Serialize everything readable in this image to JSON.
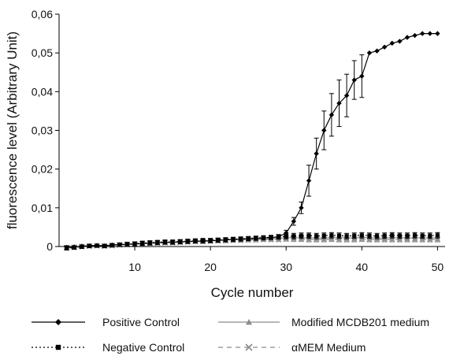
{
  "chart_data": {
    "type": "line",
    "title": "",
    "xlabel": "Cycle number",
    "ylabel": "fluorescence level (Arbitrary Unit)",
    "xlim": [
      0,
      51
    ],
    "ylim": [
      0,
      0.06
    ],
    "x_ticks": [
      10,
      20,
      30,
      40,
      50
    ],
    "x_tick_labels": [
      "10",
      "20",
      "30",
      "40",
      "50"
    ],
    "y_ticks": [
      0,
      0.01,
      0.02,
      0.03,
      0.04,
      0.05,
      0.06
    ],
    "y_tick_labels": [
      "0",
      "0,01",
      "0,02",
      "0,03",
      "0,04",
      "0,05",
      "0,06"
    ],
    "grid": false,
    "legend_position": "bottom",
    "x": [
      1,
      2,
      3,
      4,
      5,
      6,
      7,
      8,
      9,
      10,
      11,
      12,
      13,
      14,
      15,
      16,
      17,
      18,
      19,
      20,
      21,
      22,
      23,
      24,
      25,
      26,
      27,
      28,
      29,
      30,
      31,
      32,
      33,
      34,
      35,
      36,
      37,
      38,
      39,
      40,
      41,
      42,
      43,
      44,
      45,
      46,
      47,
      48,
      49,
      50
    ],
    "series": [
      {
        "name": "Positive Control",
        "color": "#000000",
        "marker": "diamond",
        "dash": "solid",
        "values": [
          -0.0002,
          -0.0001,
          0.0001,
          0.0002,
          0.0003,
          0.0002,
          0.0004,
          0.0005,
          0.0006,
          0.0007,
          0.0008,
          0.0009,
          0.001,
          0.0011,
          0.0011,
          0.0012,
          0.0013,
          0.0014,
          0.0014,
          0.0015,
          0.0016,
          0.0017,
          0.0018,
          0.0019,
          0.002,
          0.0021,
          0.0022,
          0.0023,
          0.0025,
          0.0035,
          0.0065,
          0.01,
          0.017,
          0.024,
          0.03,
          0.034,
          0.037,
          0.039,
          0.043,
          0.044,
          0.05,
          0.0505,
          0.0515,
          0.0525,
          0.053,
          0.054,
          0.0545,
          0.055,
          0.055,
          0.055
        ],
        "errors": [
          0.0004,
          0.0003,
          0.0003,
          0.0004,
          0.0003,
          0.0004,
          0.0004,
          0.0004,
          0.0005,
          0.0005,
          0.0005,
          0.0005,
          0.0005,
          0.0005,
          0.0005,
          0.0005,
          0.0005,
          0.0005,
          0.0005,
          0.0005,
          0.0005,
          0.0005,
          0.0005,
          0.0005,
          0.0005,
          0.0005,
          0.0005,
          0.0005,
          0.0006,
          0.0007,
          0.001,
          0.0015,
          0.004,
          0.004,
          0.005,
          0.0055,
          0.006,
          0.0055,
          0.005,
          0.0055,
          0,
          0,
          0,
          0,
          0,
          0,
          0,
          0,
          0,
          0
        ]
      },
      {
        "name": "Modified MCDB201 medium",
        "color": "#8c8c8c",
        "marker": "triangle",
        "dash": "solid",
        "values": [
          -0.0004,
          -0.0002,
          0.0,
          0.0002,
          0.0002,
          0.0001,
          0.0003,
          0.0004,
          0.0005,
          0.0006,
          0.0008,
          0.0009,
          0.001,
          0.001,
          0.0011,
          0.0012,
          0.0013,
          0.0014,
          0.0014,
          0.0015,
          0.0016,
          0.0017,
          0.0018,
          0.0018,
          0.0019,
          0.002,
          0.0021,
          0.0021,
          0.0022,
          0.0022,
          0.0023,
          0.0022,
          0.0023,
          0.0022,
          0.0022,
          0.0023,
          0.0023,
          0.0022,
          0.0022,
          0.0023,
          0.0023,
          0.0022,
          0.0022,
          0.0023,
          0.0023,
          0.0022,
          0.0022,
          0.0023,
          0.0022,
          0.0022
        ],
        "errors": [
          0.0004,
          0.0004,
          0.0004,
          0.0004,
          0.0004,
          0.0004,
          0.0004,
          0.0004,
          0.0005,
          0.0005,
          0.0005,
          0.0005,
          0.0005,
          0.0005,
          0.0005,
          0.0005,
          0.0005,
          0.0005,
          0.0005,
          0.0005,
          0.0005,
          0.0005,
          0.0005,
          0.0005,
          0.0005,
          0.0005,
          0.0005,
          0.0005,
          0.0005,
          0.0005,
          0.0006,
          0.0006,
          0.0006,
          0.0006,
          0.0006,
          0.0006,
          0.0006,
          0.0006,
          0.0006,
          0.0006,
          0.0006,
          0.0006,
          0.0006,
          0.0006,
          0.0006,
          0.0006,
          0.0006,
          0.0006,
          0.0006,
          0.0006
        ]
      },
      {
        "name": "Negative Control",
        "color": "#000000",
        "marker": "square",
        "dash": "dotted",
        "values": [
          -0.0005,
          -0.0003,
          -0.0001,
          0.0001,
          0.0002,
          0.0001,
          0.0003,
          0.0005,
          0.0006,
          0.0007,
          0.0009,
          0.001,
          0.0011,
          0.0012,
          0.0012,
          0.0013,
          0.0014,
          0.0015,
          0.0016,
          0.0016,
          0.0017,
          0.0018,
          0.0019,
          0.002,
          0.0021,
          0.0022,
          0.0023,
          0.0024,
          0.0025,
          0.0026,
          0.0027,
          0.0028,
          0.0028,
          0.0027,
          0.0028,
          0.0029,
          0.0028,
          0.0027,
          0.0028,
          0.0029,
          0.0028,
          0.0027,
          0.0028,
          0.0029,
          0.0028,
          0.0028,
          0.0029,
          0.0028,
          0.0028,
          0.0029
        ],
        "errors": [
          0.0004,
          0.0004,
          0.0004,
          0.0004,
          0.0004,
          0.0004,
          0.0004,
          0.0004,
          0.0004,
          0.0005,
          0.0005,
          0.0005,
          0.0005,
          0.0005,
          0.0005,
          0.0005,
          0.0005,
          0.0005,
          0.0005,
          0.0005,
          0.0005,
          0.0005,
          0.0005,
          0.0005,
          0.0005,
          0.0005,
          0.0005,
          0.0005,
          0.0005,
          0.0006,
          0.0007,
          0.0007,
          0.0007,
          0.0007,
          0.0007,
          0.0007,
          0.0007,
          0.0007,
          0.0007,
          0.0007,
          0.0007,
          0.0007,
          0.0007,
          0.0007,
          0.0007,
          0.0007,
          0.0007,
          0.0007,
          0.0007,
          0.0007
        ]
      },
      {
        "name": "αMEM Medium",
        "color": "#8c8c8c",
        "marker": "x",
        "dash": "dashed",
        "values": [
          -0.0003,
          -0.0002,
          0.0,
          0.0001,
          0.0002,
          0.0001,
          0.0002,
          0.0004,
          0.0005,
          0.0006,
          0.0007,
          0.0008,
          0.0009,
          0.001,
          0.001,
          0.0011,
          0.0012,
          0.0013,
          0.0013,
          0.0014,
          0.0015,
          0.0015,
          0.0016,
          0.0016,
          0.0017,
          0.0017,
          0.0018,
          0.0018,
          0.0018,
          0.0019,
          0.0019,
          0.0019,
          0.0018,
          0.0018,
          0.0018,
          0.0019,
          0.0018,
          0.0018,
          0.0018,
          0.0019,
          0.0018,
          0.0018,
          0.0018,
          0.0018,
          0.0018,
          0.0018,
          0.0018,
          0.0018,
          0.0018,
          0.0018
        ],
        "errors": [
          0.0004,
          0.0004,
          0.0004,
          0.0004,
          0.0004,
          0.0004,
          0.0004,
          0.0004,
          0.0004,
          0.0004,
          0.0005,
          0.0005,
          0.0005,
          0.0005,
          0.0005,
          0.0005,
          0.0005,
          0.0005,
          0.0005,
          0.0005,
          0.0005,
          0.0005,
          0.0005,
          0.0005,
          0.0005,
          0.0005,
          0.0005,
          0.0005,
          0.0005,
          0.0005,
          0.0006,
          0.0006,
          0.0006,
          0.0006,
          0.0006,
          0.0006,
          0.0006,
          0.0006,
          0.0006,
          0.0006,
          0.0006,
          0.0006,
          0.0006,
          0.0006,
          0.0006,
          0.0006,
          0.0006,
          0.0006,
          0.0006,
          0.0006
        ]
      }
    ]
  }
}
